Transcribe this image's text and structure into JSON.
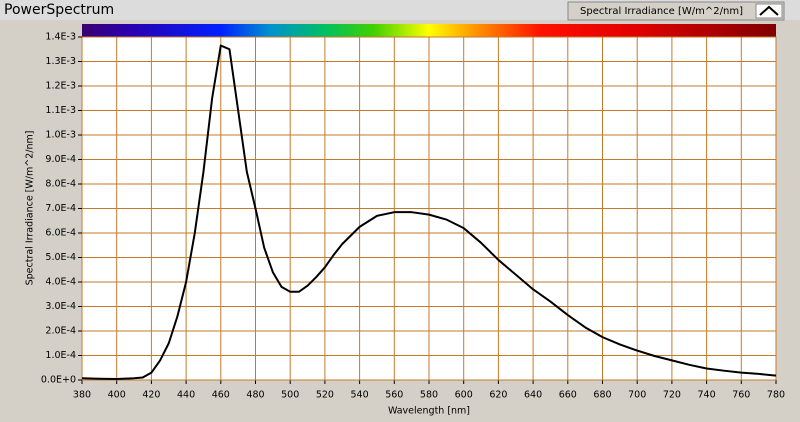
{
  "chart_data": {
    "type": "line",
    "title": "PowerSpectrum",
    "x_label": "Wavelength [nm]",
    "y_label": "Spectral Irradiance [W/m^2/nm]",
    "grid": true,
    "grid_color": "#c57a2a",
    "xlim": [
      380,
      780
    ],
    "xticks": [
      380,
      400,
      420,
      440,
      460,
      480,
      500,
      520,
      540,
      560,
      580,
      600,
      620,
      640,
      660,
      680,
      700,
      720,
      740,
      760,
      780
    ],
    "ylim": [
      0,
      0.0014
    ],
    "yticks": [
      {
        "value": 0,
        "label": "0.0E+0"
      },
      {
        "value": 0.0001,
        "label": "1.0E-4"
      },
      {
        "value": 0.0002,
        "label": "2.0E-4"
      },
      {
        "value": 0.0003,
        "label": "3.0E-4"
      },
      {
        "value": 0.0004,
        "label": "4.0E-4"
      },
      {
        "value": 0.0005,
        "label": "5.0E-4"
      },
      {
        "value": 0.0006,
        "label": "6.0E-4"
      },
      {
        "value": 0.0007,
        "label": "7.0E-4"
      },
      {
        "value": 0.0008,
        "label": "8.0E-4"
      },
      {
        "value": 0.0009,
        "label": "9.0E-4"
      },
      {
        "value": 0.001,
        "label": "1.0E-3"
      },
      {
        "value": 0.0011,
        "label": "1.1E-3"
      },
      {
        "value": 0.0012,
        "label": "1.2E-3"
      },
      {
        "value": 0.0013,
        "label": "1.3E-3"
      },
      {
        "value": 0.0014,
        "label": "1.4E-3"
      }
    ],
    "x": [
      380,
      390,
      400,
      410,
      415,
      420,
      425,
      430,
      435,
      440,
      445,
      450,
      455,
      460,
      465,
      470,
      475,
      480,
      485,
      490,
      495,
      500,
      505,
      510,
      515,
      520,
      525,
      530,
      540,
      550,
      560,
      570,
      580,
      590,
      600,
      610,
      620,
      630,
      640,
      650,
      660,
      670,
      680,
      690,
      700,
      710,
      720,
      730,
      740,
      750,
      760,
      770,
      780
    ],
    "series": [
      {
        "name": "Spectral Irradiance [W/m^2/nm]",
        "color": "#000000",
        "values": [
          7e-06,
          5e-06,
          4e-06,
          7e-06,
          1e-05,
          3e-05,
          8e-05,
          0.00015,
          0.00026,
          0.0004,
          0.0006,
          0.00085,
          0.00115,
          0.001365,
          0.00135,
          0.0011,
          0.00085,
          0.0007,
          0.00054,
          0.00044,
          0.00038,
          0.00036,
          0.00036,
          0.000385,
          0.00042,
          0.00046,
          0.00051,
          0.000555,
          0.000625,
          0.00067,
          0.000685,
          0.000685,
          0.000675,
          0.000655,
          0.00062,
          0.00056,
          0.00049,
          0.00043,
          0.00037,
          0.00032,
          0.000265,
          0.000215,
          0.000175,
          0.000145,
          0.00012,
          9.8e-05,
          8e-05,
          6.2e-05,
          4.7e-05,
          3.8e-05,
          3e-05,
          2.5e-05,
          1.8e-05
        ]
      }
    ]
  }
}
